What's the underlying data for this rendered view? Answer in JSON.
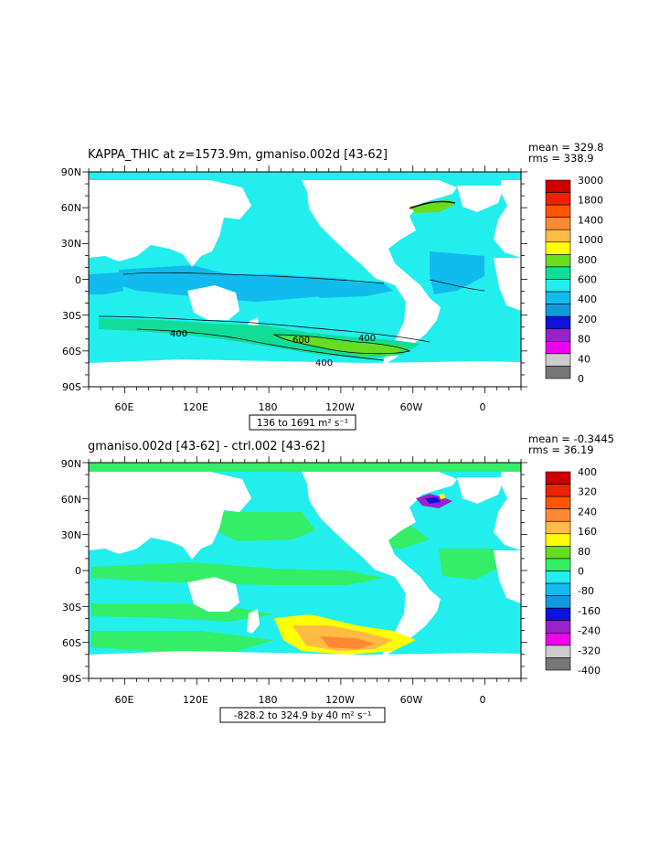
{
  "chart_data": [
    {
      "type": "heatmap",
      "title": "KAPPA_THIC at z=1573.9m, gmaniso.002d [43-62]",
      "stats": {
        "mean_text": "mean = 329.8",
        "rms_text": "rms = 338.9"
      },
      "x_ticks": [
        "60E",
        "120E",
        "180",
        "120W",
        "60W",
        "0"
      ],
      "y_ticks": [
        "90N",
        "60N",
        "30N",
        "0",
        "30S",
        "60S",
        "90S"
      ],
      "range_text": "136 to 1691 m² s⁻¹",
      "contour_labels": [
        "400",
        "600",
        "400",
        "400"
      ],
      "colorbar": {
        "levels": [
          "3000",
          "1800",
          "1400",
          "1000",
          "800",
          "600",
          "400",
          "200",
          "80",
          "40",
          "0"
        ],
        "colors": [
          "#cc0000",
          "#ee2200",
          "#ff5500",
          "#ff8833",
          "#ffbb44",
          "#ffff00",
          "#66dd22",
          "#11dd99",
          "#22eeee",
          "#11bbee",
          "#1199dd",
          "#1111dd",
          "#9922cc",
          "#ee00ee",
          "#cccccc",
          "#777777"
        ]
      }
    },
    {
      "type": "heatmap",
      "title": "gmaniso.002d [43-62] - ctrl.002 [43-62]",
      "stats": {
        "mean_text": "mean = -0.3445",
        "rms_text": "rms = 36.19"
      },
      "x_ticks": [
        "60E",
        "120E",
        "180",
        "120W",
        "60W",
        "0"
      ],
      "y_ticks": [
        "90N",
        "60N",
        "30N",
        "0",
        "30S",
        "60S",
        "90S"
      ],
      "range_text": "-828.2 to 324.9 by 40 m² s⁻¹",
      "colorbar": {
        "levels": [
          "400",
          "320",
          "240",
          "160",
          "80",
          "0",
          "-80",
          "-160",
          "-240",
          "-320",
          "-400"
        ],
        "colors": [
          "#cc0000",
          "#ee2200",
          "#ff5500",
          "#ff8833",
          "#ffbb44",
          "#ffff00",
          "#66dd22",
          "#33ee66",
          "#22eeee",
          "#11bbee",
          "#1199dd",
          "#1111dd",
          "#9922cc",
          "#ee00ee",
          "#cccccc",
          "#777777"
        ]
      }
    }
  ]
}
